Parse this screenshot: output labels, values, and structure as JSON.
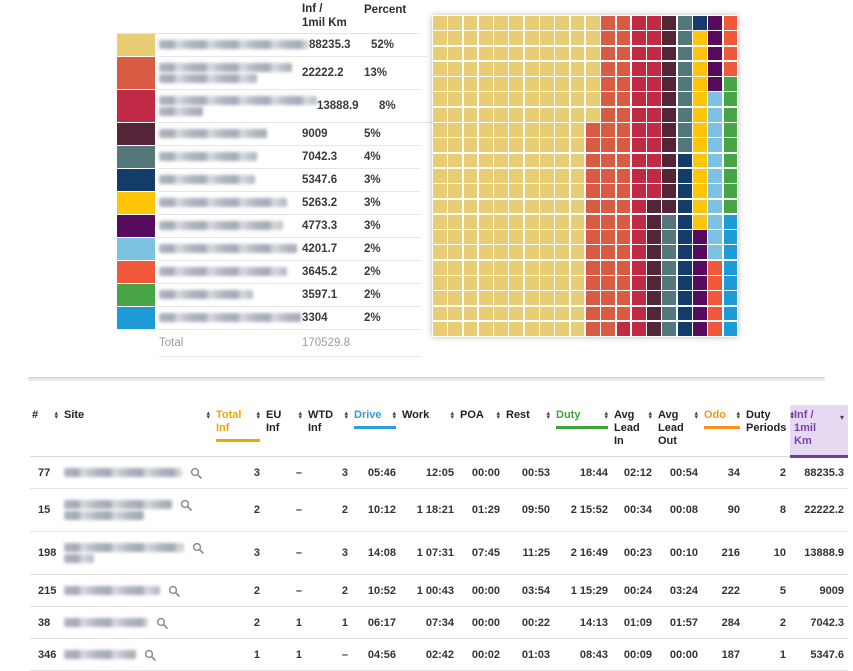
{
  "legend": {
    "value_header": "Inf /\n1mil Km",
    "percent_header": "Percent",
    "total_label": "Total",
    "total_value": "170529.8"
  },
  "chart_data": {
    "type": "waffle",
    "title": "",
    "unit_label": "Inf / 1mil Km",
    "total": 170529.8,
    "grid": {
      "columns": 20,
      "rows": 21,
      "fill_order": "column-major, top-to-bottom, left-to-right"
    },
    "legend_position": "left",
    "series": [
      {
        "label": "",
        "blurred": true,
        "display_value": "88235.3",
        "value": 88235.3,
        "percent": "52%",
        "color": "#E9CD74",
        "name_blur_line_widths": [
          150
        ]
      },
      {
        "label": "",
        "blurred": true,
        "display_value": "22222.2",
        "value": 22222.2,
        "percent": "13%",
        "color": "#D95B43",
        "name_blur_line_widths": [
          133,
          98
        ]
      },
      {
        "label": "",
        "blurred": true,
        "display_value": "13888.9",
        "value": 13888.9,
        "percent": "8%",
        "color": "#C12A45",
        "color_note": "crimson",
        "name_blur_line_widths": [
          158,
          44
        ]
      },
      {
        "label": "",
        "blurred": true,
        "display_value": "9009",
        "value": 9009,
        "percent": "5%",
        "color": "#542437",
        "name_blur_line_widths": [
          108
        ]
      },
      {
        "label": "",
        "blurred": true,
        "display_value": "7042.3",
        "value": 7042.3,
        "percent": "4%",
        "color": "#53777A",
        "name_blur_line_widths": [
          98
        ]
      },
      {
        "label": "",
        "blurred": true,
        "display_value": "5347.6",
        "value": 5347.6,
        "percent": "3%",
        "color": "#143C6B",
        "name_blur_line_widths": [
          96
        ]
      },
      {
        "label": "",
        "blurred": true,
        "display_value": "5263.2",
        "value": 5263.2,
        "percent": "3%",
        "color": "#FFC403",
        "name_blur_line_widths": [
          128
        ]
      },
      {
        "label": "",
        "blurred": true,
        "display_value": "4773.3",
        "value": 4773.3,
        "percent": "3%",
        "color": "#570B5C",
        "name_blur_line_widths": [
          124
        ]
      },
      {
        "label": "",
        "blurred": true,
        "display_value": "4201.7",
        "value": 4201.7,
        "percent": "2%",
        "color": "#7DC2E0",
        "name_blur_line_widths": [
          138
        ]
      },
      {
        "label": "",
        "blurred": true,
        "display_value": "3645.2",
        "value": 3645.2,
        "percent": "2%",
        "color": "#EF5838",
        "name_blur_line_widths": [
          128
        ]
      },
      {
        "label": "",
        "blurred": true,
        "display_value": "3597.1",
        "value": 3597.1,
        "percent": "2%",
        "color": "#47A447",
        "name_blur_line_widths": [
          94
        ]
      },
      {
        "label": "",
        "blurred": true,
        "display_value": "3304",
        "value": 3304,
        "percent": "2%",
        "color": "#1E9BD7",
        "name_blur_line_widths": [
          142
        ]
      }
    ]
  },
  "table": {
    "columns": [
      {
        "id": "num",
        "label": "#",
        "align": "left",
        "width": 32,
        "sortable": true
      },
      {
        "id": "site",
        "label": "Site",
        "align": "left",
        "width": 152,
        "sortable": true
      },
      {
        "id": "total_inf",
        "label": "Total\nInf",
        "align": "right",
        "width": 50,
        "sortable": true,
        "accent": "#F0A800"
      },
      {
        "id": "eu_inf",
        "label": "EU\nInf",
        "align": "right",
        "width": 42,
        "sortable": true
      },
      {
        "id": "wtd_inf",
        "label": "WTD\nInf",
        "align": "right",
        "width": 46,
        "sortable": true
      },
      {
        "id": "drive",
        "label": "Drive",
        "align": "right",
        "width": 48,
        "sortable": true,
        "accent": "#2D9FD8"
      },
      {
        "id": "work",
        "label": "Work",
        "align": "right",
        "width": 58,
        "sortable": true
      },
      {
        "id": "poa",
        "label": "POA",
        "align": "right",
        "width": 46,
        "sortable": true
      },
      {
        "id": "rest",
        "label": "Rest",
        "align": "right",
        "width": 50,
        "sortable": true
      },
      {
        "id": "duty",
        "label": "Duty",
        "align": "right",
        "width": 58,
        "sortable": true,
        "accent": "#3EA43E"
      },
      {
        "id": "avg_lead_in",
        "label": "Avg\nLead\nIn",
        "align": "right",
        "width": 44,
        "sortable": true
      },
      {
        "id": "avg_lead_out",
        "label": "Avg\nLead\nOut",
        "align": "right",
        "width": 46,
        "sortable": true
      },
      {
        "id": "odo",
        "label": "Odo",
        "align": "right",
        "width": 42,
        "sortable": true,
        "accent": "#F7941E"
      },
      {
        "id": "duty_periods",
        "label": "Duty\nPeriods",
        "align": "right",
        "width": 46,
        "sortable": true
      },
      {
        "id": "inf_1mil_km",
        "label": "Inf /\n1mil\nKm",
        "align": "right",
        "width": 58,
        "sortable": true,
        "accent": "#7C3FAF",
        "sorted": "desc",
        "header_bg": "#E6DAF2"
      }
    ],
    "rows": [
      {
        "num": "77",
        "site": "",
        "site_blurred": true,
        "site_blur_line_widths": [
          118
        ],
        "total_inf": "3",
        "eu_inf": "–",
        "wtd_inf": "3",
        "drive": "05:46",
        "work": "12:05",
        "poa": "00:00",
        "rest": "00:53",
        "duty": "18:44",
        "avg_lead_in": "02:12",
        "avg_lead_out": "00:54",
        "odo": "34",
        "duty_periods": "2",
        "inf_1mil_km": "88235.3"
      },
      {
        "num": "15",
        "site": "",
        "site_blurred": true,
        "site_blur_line_widths": [
          108,
          80
        ],
        "total_inf": "2",
        "eu_inf": "–",
        "wtd_inf": "2",
        "drive": "10:12",
        "work": "1 18:21",
        "poa": "01:29",
        "rest": "09:50",
        "duty": "2 15:52",
        "avg_lead_in": "00:34",
        "avg_lead_out": "00:08",
        "odo": "90",
        "duty_periods": "8",
        "inf_1mil_km": "22222.2"
      },
      {
        "num": "198",
        "site": "",
        "site_blurred": true,
        "site_blur_line_widths": [
          120,
          30
        ],
        "total_inf": "3",
        "eu_inf": "–",
        "wtd_inf": "3",
        "drive": "14:08",
        "work": "1 07:31",
        "poa": "07:45",
        "rest": "11:25",
        "duty": "2 16:49",
        "avg_lead_in": "00:23",
        "avg_lead_out": "00:10",
        "odo": "216",
        "duty_periods": "10",
        "inf_1mil_km": "13888.9"
      },
      {
        "num": "215",
        "site": "",
        "site_blurred": true,
        "site_blur_line_widths": [
          96
        ],
        "total_inf": "2",
        "eu_inf": "–",
        "wtd_inf": "2",
        "drive": "10:52",
        "work": "1 00:43",
        "poa": "00:00",
        "rest": "03:54",
        "duty": "1 15:29",
        "avg_lead_in": "00:24",
        "avg_lead_out": "03:24",
        "odo": "222",
        "duty_periods": "5",
        "inf_1mil_km": "9009"
      },
      {
        "num": "38",
        "site": "",
        "site_blurred": true,
        "site_blur_line_widths": [
          84
        ],
        "total_inf": "2",
        "eu_inf": "1",
        "wtd_inf": "1",
        "drive": "06:17",
        "work": "07:34",
        "poa": "00:00",
        "rest": "00:22",
        "duty": "14:13",
        "avg_lead_in": "01:09",
        "avg_lead_out": "01:57",
        "odo": "284",
        "duty_periods": "2",
        "inf_1mil_km": "7042.3"
      },
      {
        "num": "346",
        "site": "",
        "site_blurred": true,
        "site_blur_line_widths": [
          72
        ],
        "total_inf": "1",
        "eu_inf": "1",
        "wtd_inf": "–",
        "drive": "04:56",
        "work": "02:42",
        "poa": "00:02",
        "rest": "01:03",
        "duty": "08:43",
        "avg_lead_in": "00:09",
        "avg_lead_out": "00:00",
        "odo": "187",
        "duty_periods": "1",
        "inf_1mil_km": "5347.6"
      }
    ],
    "icons": {
      "row_zoom": "magnifier",
      "sort_both": "▴▾",
      "sort_desc": "▾"
    }
  }
}
